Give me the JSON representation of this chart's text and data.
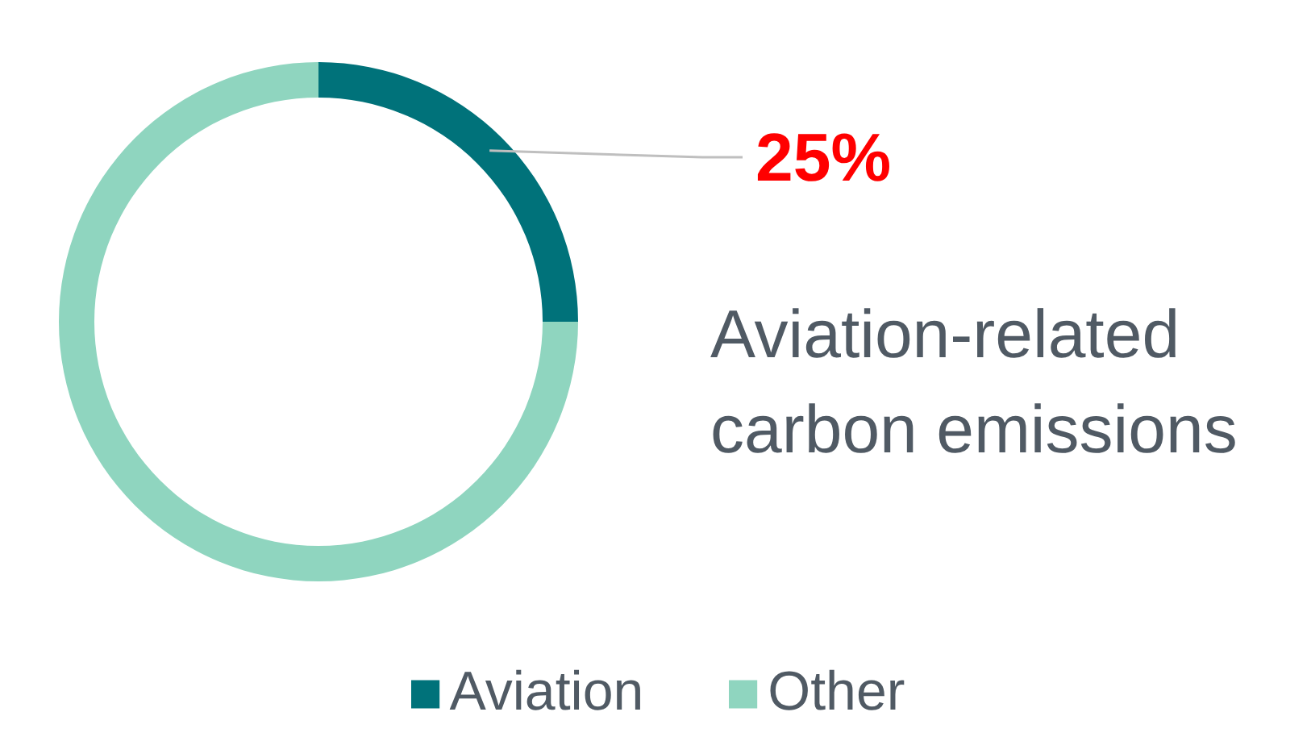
{
  "chart_data": {
    "type": "donut",
    "categories": [
      "Aviation",
      "Other"
    ],
    "values": [
      25,
      75
    ],
    "colors": [
      "#00727a",
      "#8fd5bf"
    ],
    "value_labels": [
      "25%",
      null
    ],
    "annotations": [
      "Aviation-related\ncarbon emissions"
    ],
    "legend": "bottom"
  }
}
